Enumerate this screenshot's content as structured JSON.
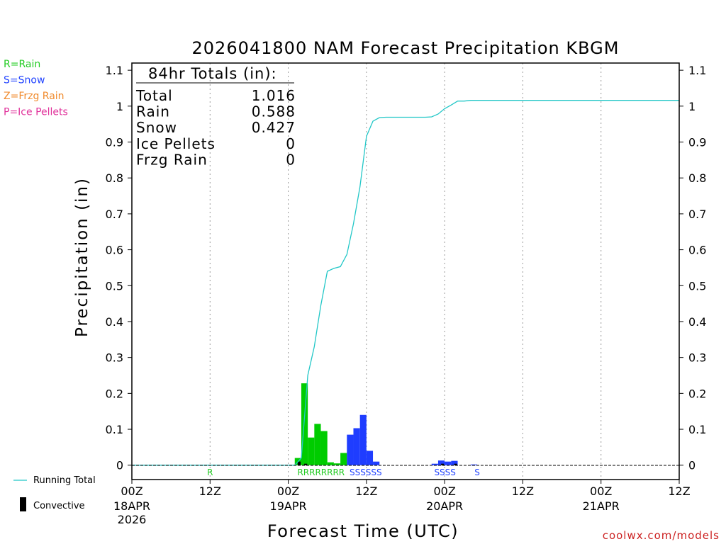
{
  "chart_data": {
    "type": "bar",
    "title": "2026041800 NAM Forecast Precipitation KBGM",
    "ylabel": "Precipitation (in)",
    "xlabel": "Forecast Time (UTC)",
    "ylim": [
      -0.04,
      1.12
    ],
    "xlim_hours": [
      0,
      84
    ],
    "yticks": [
      0,
      0.1,
      0.2,
      0.3,
      0.4,
      0.5,
      0.6,
      0.7,
      0.8,
      0.9,
      1,
      1.1
    ],
    "ytick_labels": [
      "0",
      "0.1",
      "0.2",
      "0.3",
      "0.4",
      "0.5",
      "0.6",
      "0.7",
      "0.8",
      "0.9",
      "1",
      "1.1"
    ],
    "xticks": [
      {
        "hour": 0,
        "line1": "00Z",
        "line2": "18APR",
        "line3": "2026"
      },
      {
        "hour": 12,
        "line1": "12Z",
        "line2": "",
        "line3": ""
      },
      {
        "hour": 24,
        "line1": "00Z",
        "line2": "19APR",
        "line3": ""
      },
      {
        "hour": 36,
        "line1": "12Z",
        "line2": "",
        "line3": ""
      },
      {
        "hour": 48,
        "line1": "00Z",
        "line2": "20APR",
        "line3": ""
      },
      {
        "hour": 60,
        "line1": "12Z",
        "line2": "",
        "line3": ""
      },
      {
        "hour": 72,
        "line1": "00Z",
        "line2": "21APR",
        "line3": ""
      },
      {
        "hour": 84,
        "line1": "12Z",
        "line2": "",
        "line3": ""
      }
    ],
    "precip_type_legend": [
      {
        "label": "R=Rain",
        "color": "#22cc22"
      },
      {
        "label": "S=Snow",
        "color": "#2244ff"
      },
      {
        "label": "Z=Frzg Rain",
        "color": "#f08a2c"
      },
      {
        "label": "P=Ice Pellets",
        "color": "#e0309a"
      }
    ],
    "series_legend": {
      "running_total_label": "Running Total",
      "convective_label": "Convective"
    },
    "colors": {
      "rain": "#00cc00",
      "snow": "#1f3dff",
      "running_total": "#22c7c7",
      "convective": "#000000"
    },
    "totals_box": {
      "header": "84hr Totals (in):",
      "rows": [
        {
          "label": "Total",
          "value": "1.016"
        },
        {
          "label": "Rain",
          "value": "0.588"
        },
        {
          "label": "Snow",
          "value": "0.427"
        },
        {
          "label": "Ice Pellets",
          "value": "0"
        },
        {
          "label": "Frzg Rain",
          "value": "0"
        }
      ]
    },
    "bars": [
      {
        "hour": 26,
        "value": 0.02,
        "type": "rain"
      },
      {
        "hour": 27,
        "value": 0.228,
        "type": "rain"
      },
      {
        "hour": 28,
        "value": 0.077,
        "type": "rain"
      },
      {
        "hour": 29,
        "value": 0.115,
        "type": "rain"
      },
      {
        "hour": 30,
        "value": 0.095,
        "type": "rain"
      },
      {
        "hour": 31,
        "value": 0.008,
        "type": "rain"
      },
      {
        "hour": 32,
        "value": 0.005,
        "type": "rain"
      },
      {
        "hour": 33,
        "value": 0.034,
        "type": "rain"
      },
      {
        "hour": 34,
        "value": 0.085,
        "type": "snow"
      },
      {
        "hour": 35,
        "value": 0.103,
        "type": "snow"
      },
      {
        "hour": 36,
        "value": 0.14,
        "type": "snow"
      },
      {
        "hour": 37,
        "value": 0.04,
        "type": "snow"
      },
      {
        "hour": 38,
        "value": 0.01,
        "type": "snow"
      },
      {
        "hour": 47,
        "value": 0.004,
        "type": "snow"
      },
      {
        "hour": 48,
        "value": 0.013,
        "type": "snow"
      },
      {
        "hour": 49,
        "value": 0.01,
        "type": "snow"
      },
      {
        "hour": 50,
        "value": 0.012,
        "type": "snow"
      },
      {
        "hour": 53,
        "value": 0.002,
        "type": "snow"
      }
    ],
    "convective": [
      {
        "hour": 26,
        "value": 0.01
      },
      {
        "hour": 27,
        "value": 0.004
      },
      {
        "hour": 48,
        "value": 0.004
      },
      {
        "hour": 50,
        "value": 0.004
      }
    ],
    "running_total": {
      "x": [
        0,
        25,
        26,
        27,
        28,
        29,
        30,
        31,
        32,
        33,
        34,
        35,
        36,
        37,
        38,
        39,
        40,
        41,
        42,
        43,
        44,
        45,
        46,
        47,
        48,
        49,
        50,
        51,
        52,
        84
      ],
      "y": [
        0,
        0,
        0.02,
        0.25,
        0.33,
        0.445,
        0.54,
        0.548,
        0.553,
        0.587,
        0.672,
        0.775,
        0.916,
        0.958,
        0.968,
        0.969,
        0.969,
        0.969,
        0.969,
        0.969,
        0.969,
        0.969,
        0.97,
        0.978,
        0.993,
        1.003,
        1.014,
        1.014,
        1.016,
        1.016
      ]
    },
    "type_markers": [
      {
        "hour": 12,
        "text": "R",
        "type": "rain"
      },
      {
        "hour": 26,
        "text": "RRRRRRRR",
        "type": "rain"
      },
      {
        "hour": 34,
        "text": "SSSSSS",
        "type": "snow"
      },
      {
        "hour": 47,
        "text": "SSSS",
        "type": "snow"
      },
      {
        "hour": 53,
        "text": "S",
        "type": "snow"
      }
    ],
    "credit": "coolwx.com/models"
  }
}
